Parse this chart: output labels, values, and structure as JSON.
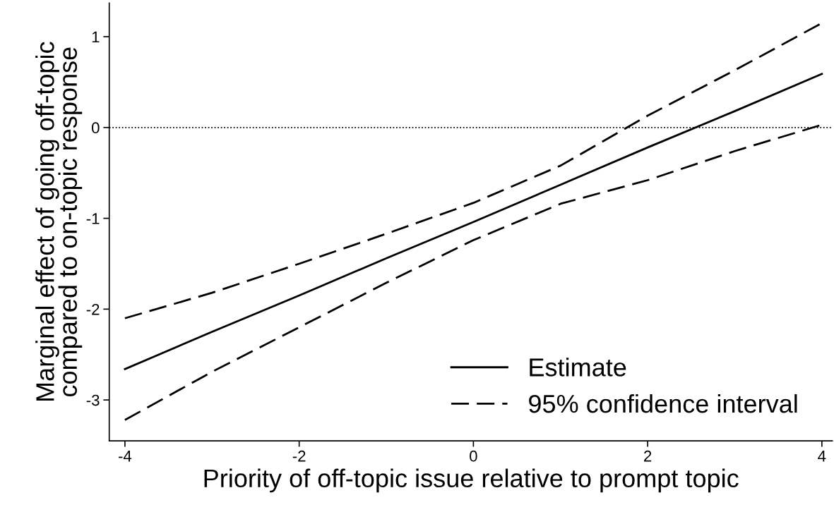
{
  "chart_data": {
    "type": "line",
    "xlabel": "Priority of off-topic issue relative to prompt topic",
    "ylabel": "Marginal effect of going off-topic\ncompared to on-topic response",
    "x": [
      -4,
      -3,
      -2,
      -1,
      0,
      1,
      2,
      3,
      4
    ],
    "series": [
      {
        "name": "Estimate",
        "color": "#000000",
        "line_style": "solid",
        "values": [
          -2.66,
          -2.25,
          -1.85,
          -1.44,
          -1.04,
          -0.63,
          -0.22,
          0.18,
          0.59
        ]
      },
      {
        "name": "95% confidence interval",
        "color": "#000000",
        "line_style": "dashed",
        "values": [
          -2.1,
          -1.82,
          -1.5,
          -1.17,
          -0.83,
          -0.42,
          0.13,
          0.63,
          1.15
        ]
      },
      {
        "color": "#000000",
        "line_style": "dashed",
        "values": [
          -3.22,
          -2.69,
          -2.2,
          -1.71,
          -1.24,
          -0.84,
          -0.58,
          -0.26,
          0.03
        ]
      }
    ],
    "xlim": [
      -4.18,
      4.12
    ],
    "ylim": [
      -3.45,
      1.37
    ],
    "xticks": [
      {
        "value": -4,
        "label": "-4"
      },
      {
        "value": -2,
        "label": "-2"
      },
      0,
      2,
      4
    ],
    "yticks": [
      {
        "value": -3,
        "label": "-3"
      },
      {
        "value": -2,
        "label": "-2"
      },
      {
        "value": -1,
        "label": "-1"
      },
      0,
      1
    ],
    "ref_lines": [
      {
        "axis": "y",
        "value": 0,
        "line_style": "dotted",
        "color": "#000000"
      }
    ],
    "grid": false,
    "legend": "bottom right",
    "marker": "none"
  }
}
